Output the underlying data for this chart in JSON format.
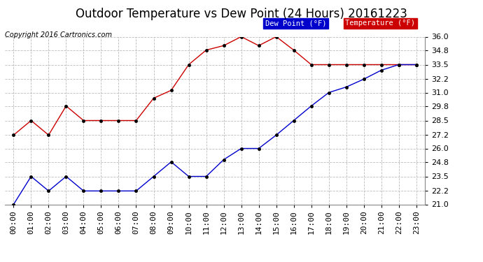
{
  "title": "Outdoor Temperature vs Dew Point (24 Hours) 20161223",
  "copyright": "Copyright 2016 Cartronics.com",
  "hours": [
    "00:00",
    "01:00",
    "02:00",
    "03:00",
    "04:00",
    "05:00",
    "06:00",
    "07:00",
    "08:00",
    "09:00",
    "10:00",
    "11:00",
    "12:00",
    "13:00",
    "14:00",
    "15:00",
    "16:00",
    "17:00",
    "18:00",
    "19:00",
    "20:00",
    "21:00",
    "22:00",
    "23:00"
  ],
  "temperature": [
    27.2,
    28.5,
    27.2,
    29.8,
    28.5,
    28.5,
    28.5,
    28.5,
    30.5,
    31.2,
    33.5,
    34.8,
    35.2,
    36.0,
    35.2,
    36.0,
    34.8,
    33.5,
    33.5,
    33.5,
    33.5,
    33.5,
    33.5,
    33.5
  ],
  "dewpoint": [
    21.0,
    23.5,
    22.2,
    23.5,
    22.2,
    22.2,
    22.2,
    22.2,
    23.5,
    24.8,
    23.5,
    23.5,
    25.0,
    26.0,
    26.0,
    27.2,
    28.5,
    29.8,
    31.0,
    31.5,
    32.2,
    33.0,
    33.5,
    33.5
  ],
  "ylim": [
    21.0,
    36.0
  ],
  "yticks": [
    21.0,
    22.2,
    23.5,
    24.8,
    26.0,
    27.2,
    28.5,
    29.8,
    31.0,
    32.2,
    33.5,
    34.8,
    36.0
  ],
  "temp_color": "#cc0000",
  "dew_color": "#0000cc",
  "bg_color": "#ffffff",
  "grid_color": "#bbbbbb",
  "title_fontsize": 12,
  "copyright_fontsize": 7,
  "legend_dew_bg": "#0000cc",
  "legend_temp_bg": "#cc0000",
  "tick_fontsize": 8
}
